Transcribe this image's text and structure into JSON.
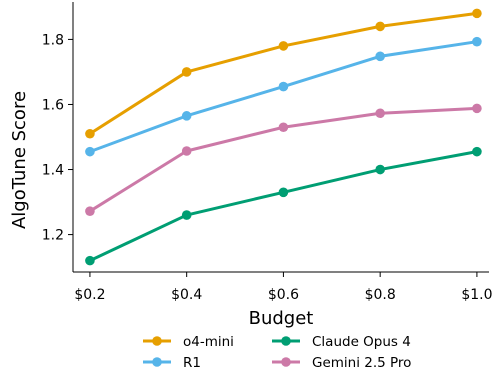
{
  "chart_data": {
    "type": "line",
    "xlabel": "Budget",
    "ylabel": "AlgoTune Score",
    "x_values": [
      0.2,
      0.4,
      0.6,
      0.8,
      1.0
    ],
    "xticks": [
      "$0.2",
      "$0.4",
      "$0.6",
      "$0.8",
      "$1.0"
    ],
    "xlim": [
      0.165,
      1.025
    ],
    "ylim": [
      1.085,
      1.915
    ],
    "yticks": [
      1.2,
      1.4,
      1.6,
      1.8
    ],
    "ytick_labels": [
      "1.2",
      "1.4",
      "1.6",
      "1.8"
    ],
    "grid": false,
    "legend_position": "bottom",
    "series": [
      {
        "name": "o4-mini",
        "color": "#E69F00",
        "values": [
          1.51,
          1.7,
          1.78,
          1.84,
          1.88
        ]
      },
      {
        "name": "R1",
        "color": "#56B4E9",
        "values": [
          1.455,
          1.565,
          1.655,
          1.748,
          1.793
        ]
      },
      {
        "name": "Claude Opus 4",
        "color": "#009E73",
        "values": [
          1.12,
          1.26,
          1.33,
          1.4,
          1.455
        ]
      },
      {
        "name": "Gemini 2.5 Pro",
        "color": "#CC79A7",
        "values": [
          1.272,
          1.457,
          1.53,
          1.573,
          1.588
        ]
      }
    ]
  }
}
